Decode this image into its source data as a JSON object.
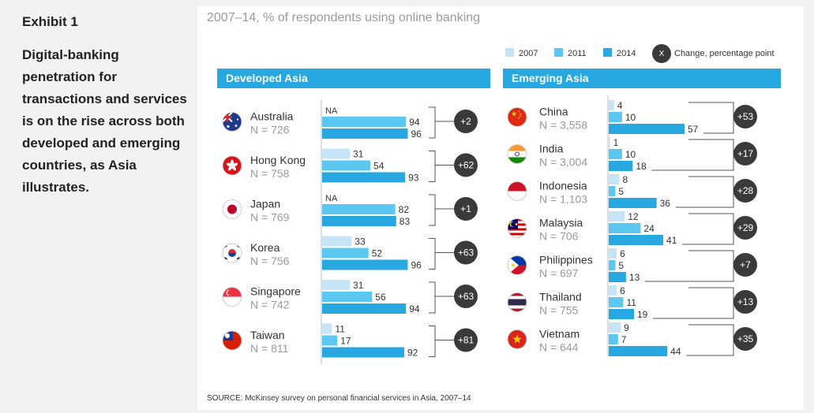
{
  "exhibit": "Exhibit 1",
  "headline": "Digital-banking penetration for transactions and services is on the rise across both developed and emerging countries, as Asia illustrates.",
  "subtitle": "2007–14, % of respondents using online banking",
  "legend": {
    "y2007": "2007",
    "y2011": "2011",
    "y2014": "2014",
    "change_symbol": "X",
    "change_label": "Change, percentage point"
  },
  "source": "SOURCE: McKinsey survey on personal financial services in Asia, 2007–14",
  "colors": {
    "y2007": "#c5e4f6",
    "y2011": "#5cc8f2",
    "y2014": "#27a8e0",
    "header": "#27a8e0",
    "change_circle": "#3a3a3a"
  },
  "chart_data": [
    {
      "type": "bar",
      "title": "Developed Asia",
      "series_names": [
        "2007",
        "2011",
        "2014"
      ],
      "rows": [
        {
          "country": "Australia",
          "n": "N = 726",
          "v2007": null,
          "v2011": 94,
          "v2014": 96,
          "change": "+2",
          "flag": "australia-flag-icon"
        },
        {
          "country": "Hong Kong",
          "n": "N = 758",
          "v2007": 31,
          "v2011": 54,
          "v2014": 93,
          "change": "+62",
          "flag": "hong-kong-flag-icon"
        },
        {
          "country": "Japan",
          "n": "N = 769",
          "v2007": null,
          "v2011": 82,
          "v2014": 83,
          "change": "+1",
          "flag": "japan-flag-icon"
        },
        {
          "country": "Korea",
          "n": "N = 756",
          "v2007": 33,
          "v2011": 52,
          "v2014": 96,
          "change": "+63",
          "flag": "korea-flag-icon"
        },
        {
          "country": "Singapore",
          "n": "N = 742",
          "v2007": 31,
          "v2011": 56,
          "v2014": 94,
          "change": "+63",
          "flag": "singapore-flag-icon"
        },
        {
          "country": "Taiwan",
          "n": "N = 811",
          "v2007": 11,
          "v2011": 17,
          "v2014": 92,
          "change": "+81",
          "flag": "taiwan-flag-icon"
        }
      ],
      "na_label": "NA"
    },
    {
      "type": "bar",
      "title": "Emerging Asia",
      "series_names": [
        "2007",
        "2011",
        "2014"
      ],
      "rows": [
        {
          "country": "China",
          "n": "N = 3,558",
          "v2007": 4,
          "v2011": 10,
          "v2014": 57,
          "change": "+53",
          "flag": "china-flag-icon"
        },
        {
          "country": "India",
          "n": "N = 3,004",
          "v2007": 1,
          "v2011": 10,
          "v2014": 18,
          "change": "+17",
          "flag": "india-flag-icon"
        },
        {
          "country": "Indonesia",
          "n": "N = 1,103",
          "v2007": 8,
          "v2011": 5,
          "v2014": 36,
          "change": "+28",
          "flag": "indonesia-flag-icon"
        },
        {
          "country": "Malaysia",
          "n": "N = 706",
          "v2007": 12,
          "v2011": 24,
          "v2014": 41,
          "change": "+29",
          "flag": "malaysia-flag-icon"
        },
        {
          "country": "Philippines",
          "n": "N = 697",
          "v2007": 6,
          "v2011": 5,
          "v2014": 13,
          "change": "+7",
          "flag": "philippines-flag-icon"
        },
        {
          "country": "Thailand",
          "n": "N = 755",
          "v2007": 6,
          "v2011": 11,
          "v2014": 19,
          "change": "+13",
          "flag": "thailand-flag-icon"
        },
        {
          "country": "Vietnam",
          "n": "N = 644",
          "v2007": 9,
          "v2011": 7,
          "v2014": 44,
          "change": "+35",
          "flag": "vietnam-flag-icon"
        }
      ],
      "na_label": "NA"
    }
  ]
}
